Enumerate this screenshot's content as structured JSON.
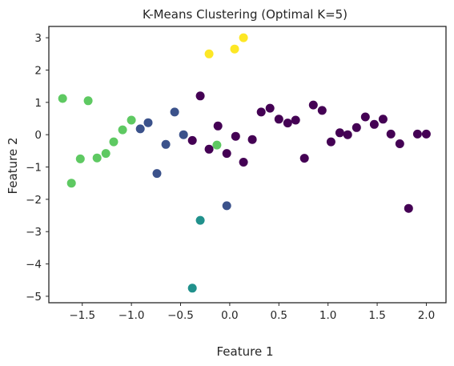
{
  "chart_data": {
    "type": "scatter",
    "title": "K-Means Clustering (Optimal K=5)",
    "xlabel": "Feature 1",
    "ylabel": "Feature 2",
    "xlim": [
      -1.84,
      2.2
    ],
    "ylim": [
      -5.2,
      3.35
    ],
    "xticks": [
      -1.5,
      -1.0,
      -0.5,
      0.0,
      0.5,
      1.0,
      1.5,
      2.0
    ],
    "xtick_labels": [
      "−1.5",
      "−1.0",
      "−0.5",
      "0.0",
      "0.5",
      "1.0",
      "1.5",
      "2.0"
    ],
    "yticks": [
      -5,
      -4,
      -3,
      -2,
      -1,
      0,
      1,
      2,
      3
    ],
    "ytick_labels": [
      "−5",
      "−4",
      "−3",
      "−2",
      "−1",
      "0",
      "1",
      "2",
      "3"
    ],
    "grid": false,
    "colormap": "viridis",
    "cluster_colors": {
      "0": "#440154",
      "1": "#3b528b",
      "2": "#21918c",
      "3": "#5ec962",
      "4": "#fde725"
    },
    "points": [
      {
        "x": -1.7,
        "y": 1.12,
        "cluster": 3
      },
      {
        "x": -1.44,
        "y": 1.05,
        "cluster": 3
      },
      {
        "x": -1.61,
        "y": -1.5,
        "cluster": 3
      },
      {
        "x": -1.52,
        "y": -0.75,
        "cluster": 3
      },
      {
        "x": -1.35,
        "y": -0.72,
        "cluster": 3
      },
      {
        "x": -1.26,
        "y": -0.58,
        "cluster": 3
      },
      {
        "x": -1.18,
        "y": -0.22,
        "cluster": 3
      },
      {
        "x": -1.09,
        "y": 0.15,
        "cluster": 3
      },
      {
        "x": -1.0,
        "y": 0.45,
        "cluster": 3
      },
      {
        "x": -0.13,
        "y": -0.32,
        "cluster": 3
      },
      {
        "x": -0.91,
        "y": 0.18,
        "cluster": 1
      },
      {
        "x": -0.83,
        "y": 0.37,
        "cluster": 1
      },
      {
        "x": -0.74,
        "y": -1.2,
        "cluster": 1
      },
      {
        "x": -0.65,
        "y": -0.3,
        "cluster": 1
      },
      {
        "x": -0.56,
        "y": 0.7,
        "cluster": 1
      },
      {
        "x": -0.47,
        "y": 0.0,
        "cluster": 1
      },
      {
        "x": -0.03,
        "y": -2.2,
        "cluster": 1
      },
      {
        "x": -0.3,
        "y": -2.65,
        "cluster": 2
      },
      {
        "x": -0.38,
        "y": -4.75,
        "cluster": 2
      },
      {
        "x": -0.21,
        "y": 2.5,
        "cluster": 4
      },
      {
        "x": 0.05,
        "y": 2.65,
        "cluster": 4
      },
      {
        "x": 0.14,
        "y": 3.0,
        "cluster": 4
      },
      {
        "x": -0.38,
        "y": -0.18,
        "cluster": 0
      },
      {
        "x": -0.3,
        "y": 1.2,
        "cluster": 0
      },
      {
        "x": -0.21,
        "y": -0.45,
        "cluster": 0
      },
      {
        "x": -0.12,
        "y": 0.27,
        "cluster": 0
      },
      {
        "x": -0.03,
        "y": -0.58,
        "cluster": 0
      },
      {
        "x": 0.06,
        "y": -0.05,
        "cluster": 0
      },
      {
        "x": 0.14,
        "y": -0.85,
        "cluster": 0
      },
      {
        "x": 0.23,
        "y": -0.15,
        "cluster": 0
      },
      {
        "x": 0.32,
        "y": 0.7,
        "cluster": 0
      },
      {
        "x": 0.41,
        "y": 0.82,
        "cluster": 0
      },
      {
        "x": 0.5,
        "y": 0.48,
        "cluster": 0
      },
      {
        "x": 0.59,
        "y": 0.36,
        "cluster": 0
      },
      {
        "x": 0.67,
        "y": 0.45,
        "cluster": 0
      },
      {
        "x": 0.76,
        "y": -0.73,
        "cluster": 0
      },
      {
        "x": 0.85,
        "y": 0.92,
        "cluster": 0
      },
      {
        "x": 0.94,
        "y": 0.75,
        "cluster": 0
      },
      {
        "x": 1.03,
        "y": -0.22,
        "cluster": 0
      },
      {
        "x": 1.12,
        "y": 0.06,
        "cluster": 0
      },
      {
        "x": 1.2,
        "y": 0.0,
        "cluster": 0
      },
      {
        "x": 1.29,
        "y": 0.22,
        "cluster": 0
      },
      {
        "x": 1.38,
        "y": 0.55,
        "cluster": 0
      },
      {
        "x": 1.47,
        "y": 0.32,
        "cluster": 0
      },
      {
        "x": 1.56,
        "y": 0.48,
        "cluster": 0
      },
      {
        "x": 1.64,
        "y": 0.02,
        "cluster": 0
      },
      {
        "x": 1.73,
        "y": -0.28,
        "cluster": 0
      },
      {
        "x": 1.82,
        "y": -2.28,
        "cluster": 0
      },
      {
        "x": 1.91,
        "y": 0.02,
        "cluster": 0
      },
      {
        "x": 2.0,
        "y": 0.02,
        "cluster": 0
      }
    ]
  }
}
